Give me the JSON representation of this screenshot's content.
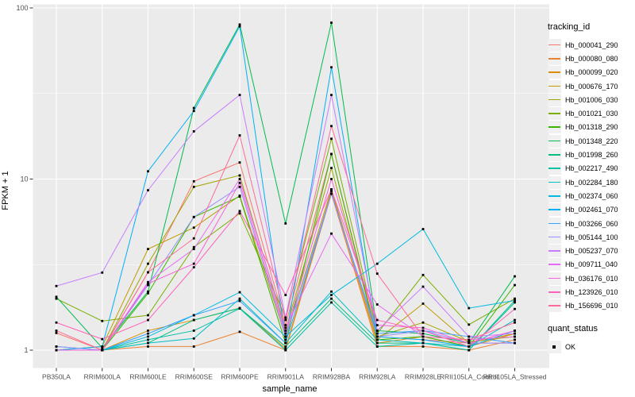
{
  "figure": {
    "x_axis_title": "sample_name",
    "y_axis_title": "FPKM + 1",
    "legend1_title": "tracking_id",
    "legend2_title": "quant_status",
    "quant_status_entry": "OK",
    "colors": {
      "panel_bg": "#EBEBEB",
      "grid": "#FFFFFF",
      "tick_text": "#4D4D4D",
      "point": "#000000",
      "legend_key_bg": "#F0F0F0"
    }
  },
  "chart_data": {
    "type": "line",
    "title": "",
    "xlabel": "sample_name",
    "ylabel": "FPKM + 1",
    "y_scale": "log10",
    "y_ticks": [
      1,
      10,
      100
    ],
    "y_tick_labels": [
      "1",
      "10",
      "100"
    ],
    "y_minor_ticks": [
      3.162,
      31.62
    ],
    "ylim": [
      0.78,
      110
    ],
    "grid": true,
    "legend_position": "right",
    "point_marker": "black-square",
    "categories": [
      "PB350LA",
      "RRIM600LA",
      "RRIM600LE",
      "RRIM600SE",
      "RRIM600PE",
      "RRIM901LA",
      "RRIM928BA",
      "RRIM928LA",
      "RRIM928LE",
      "RRII105LA_Control",
      "RRII105LA_Stressed"
    ],
    "series": [
      {
        "name": "Hb_000041_290",
        "color": "#F8766D",
        "values": [
          1.26,
          1.0,
          2.85,
          9.7,
          12.5,
          1.4,
          14.0,
          1.2,
          1.15,
          1.1,
          1.1
        ]
      },
      {
        "name": "Hb_000080_080",
        "color": "#EA8331",
        "values": [
          1.0,
          1.0,
          1.05,
          1.05,
          1.28,
          1.0,
          8.2,
          1.05,
          1.05,
          1.0,
          1.15
        ]
      },
      {
        "name": "Hb_000099_020",
        "color": "#D89000",
        "values": [
          1.0,
          1.0,
          1.3,
          1.5,
          1.76,
          1.02,
          8.5,
          1.1,
          1.2,
          1.05,
          1.25
        ]
      },
      {
        "name": "Hb_000676_170",
        "color": "#C09B00",
        "values": [
          1.0,
          1.05,
          3.9,
          5.2,
          8.0,
          1.2,
          8.7,
          1.15,
          1.87,
          1.1,
          1.25
        ]
      },
      {
        "name": "Hb_001006_030",
        "color": "#A3A500",
        "values": [
          1.0,
          1.0,
          3.2,
          9.0,
          10.5,
          1.3,
          11.6,
          1.2,
          1.45,
          1.12,
          1.2
        ]
      },
      {
        "name": "Hb_001021_030",
        "color": "#7CAE00",
        "values": [
          2.0,
          1.48,
          1.6,
          4.0,
          6.3,
          1.55,
          17.2,
          1.25,
          2.75,
          1.41,
          2.0
        ]
      },
      {
        "name": "Hb_001318_290",
        "color": "#39B600",
        "values": [
          1.0,
          1.0,
          2.15,
          6.0,
          7.9,
          1.1,
          14.0,
          1.15,
          1.2,
          1.05,
          2.4
        ]
      },
      {
        "name": "Hb_001348_220",
        "color": "#00BB4E",
        "values": [
          2.05,
          1.03,
          2.2,
          26.0,
          80.0,
          5.5,
          82.0,
          1.3,
          1.25,
          1.1,
          2.7
        ]
      },
      {
        "name": "Hb_001998_260",
        "color": "#00BF7D",
        "values": [
          1.0,
          1.0,
          1.1,
          1.5,
          1.76,
          1.05,
          2.0,
          1.1,
          1.1,
          1.0,
          1.9
        ]
      },
      {
        "name": "Hb_002217_490",
        "color": "#00C1A3",
        "values": [
          1.0,
          1.0,
          1.15,
          1.3,
          1.75,
          1.0,
          1.9,
          1.05,
          1.1,
          1.0,
          1.95
        ]
      },
      {
        "name": "Hb_002284_180",
        "color": "#00BFC4",
        "values": [
          1.05,
          1.0,
          1.1,
          1.17,
          2.0,
          1.1,
          2.2,
          1.15,
          1.1,
          1.05,
          1.5
        ]
      },
      {
        "name": "Hb_002374_060",
        "color": "#00BAE0",
        "values": [
          1.0,
          1.0,
          1.2,
          1.6,
          2.18,
          1.2,
          2.1,
          3.2,
          5.1,
          1.76,
          1.95
        ]
      },
      {
        "name": "Hb_002461_070",
        "color": "#00B0F6",
        "values": [
          1.0,
          1.05,
          11.1,
          25.0,
          78.0,
          1.15,
          45.0,
          1.2,
          1.15,
          1.05,
          1.3
        ]
      },
      {
        "name": "Hb_003266_060",
        "color": "#35A2FF",
        "values": [
          1.0,
          1.0,
          1.25,
          1.6,
          1.94,
          1.1,
          8.2,
          1.25,
          1.3,
          1.2,
          1.1
        ]
      },
      {
        "name": "Hb_005144_100",
        "color": "#9590FF",
        "values": [
          1.05,
          1.0,
          2.4,
          6.0,
          9.0,
          1.2,
          8.2,
          1.2,
          1.3,
          1.1,
          1.1
        ]
      },
      {
        "name": "Hb_005237_070",
        "color": "#C77CFF",
        "values": [
          2.37,
          2.84,
          8.6,
          19.0,
          31.0,
          1.55,
          31.0,
          1.3,
          2.35,
          1.2,
          1.25
        ]
      },
      {
        "name": "Hb_009711_040",
        "color": "#E76BF3",
        "values": [
          1.0,
          1.0,
          2.5,
          3.9,
          10.0,
          1.35,
          4.8,
          1.85,
          1.2,
          1.15,
          1.2
        ]
      },
      {
        "name": "Hb_036176_010",
        "color": "#FA62DB",
        "values": [
          1.0,
          1.0,
          2.45,
          3.2,
          9.5,
          1.25,
          10.0,
          1.4,
          1.35,
          1.1,
          1.3
        ]
      },
      {
        "name": "Hb_123926_010",
        "color": "#FF62BC",
        "values": [
          1.45,
          1.16,
          1.5,
          3.05,
          6.5,
          2.1,
          8.7,
          1.5,
          1.3,
          1.05,
          1.74
        ]
      },
      {
        "name": "Hb_156696_010",
        "color": "#FF6A98",
        "values": [
          1.3,
          1.0,
          2.85,
          4.5,
          18.0,
          1.5,
          20.4,
          2.8,
          1.2,
          1.15,
          1.45
        ]
      }
    ]
  }
}
